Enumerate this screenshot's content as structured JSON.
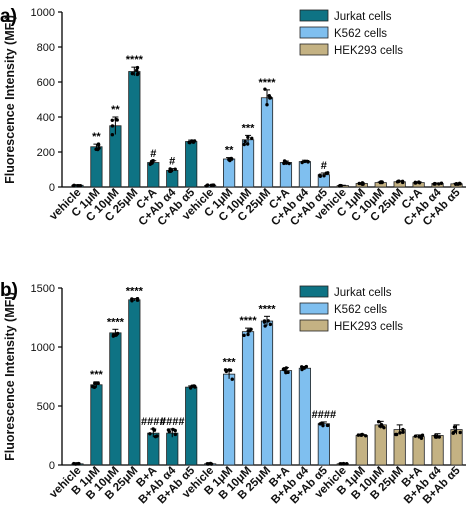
{
  "panels": [
    {
      "label": "a)",
      "ylabel": "Fluorescence Intensity (MFI)",
      "legend": [
        "Jurkat cells",
        "K562 cells",
        "HEK293 cells"
      ]
    },
    {
      "label": "b)",
      "ylabel": "Fluorescence Intensity (MFI)",
      "legend": [
        "Jurkat cells",
        "K562 cells",
        "HEK293 cells"
      ]
    }
  ],
  "colors": {
    "jurkat": "#0e7384",
    "k562": "#7fbfef",
    "hek293": "#c4b283"
  },
  "chart_data": [
    {
      "type": "bar",
      "panel": "a)",
      "ylabel": "Fluorescence Intensity (MFI)",
      "ylim": [
        0,
        1000
      ],
      "yticks": [
        0,
        200,
        400,
        600,
        800,
        1000
      ],
      "categories": [
        "vehicle",
        "C 1μM",
        "C 10μM",
        "C 25μM",
        "C+A",
        "C+Ab α4",
        "C+Ab α5",
        "vehicle",
        "C 1μM",
        "C 10μM",
        "C 25μM",
        "C+A",
        "C+Ab α4",
        "C+Ab α5",
        "vehicle",
        "C 1μM",
        "C 10μM",
        "C 25μM",
        "C+A",
        "C+Ab α4",
        "C+Ab α5"
      ],
      "groups": [
        "Jurkat cells",
        "Jurkat cells",
        "Jurkat cells",
        "Jurkat cells",
        "Jurkat cells",
        "Jurkat cells",
        "Jurkat cells",
        "K562 cells",
        "K562 cells",
        "K562 cells",
        "K562 cells",
        "K562 cells",
        "K562 cells",
        "K562 cells",
        "HEK293 cells",
        "HEK293 cells",
        "HEK293 cells",
        "HEK293 cells",
        "HEK293 cells",
        "HEK293 cells",
        "HEK293 cells"
      ],
      "values": [
        10,
        230,
        350,
        660,
        140,
        95,
        260,
        8,
        160,
        270,
        510,
        140,
        145,
        70,
        8,
        20,
        25,
        30,
        25,
        20,
        18
      ],
      "errors": [
        3,
        15,
        50,
        25,
        10,
        10,
        8,
        3,
        8,
        25,
        45,
        8,
        8,
        10,
        2,
        4,
        4,
        5,
        4,
        3,
        3
      ],
      "significance": [
        "",
        "**",
        "**",
        "****",
        "#",
        "#",
        "",
        "",
        "**",
        "***",
        "****",
        "",
        "",
        "#",
        "",
        "",
        "",
        "",
        "",
        "",
        ""
      ],
      "legend": [
        "Jurkat cells",
        "K562 cells",
        "HEK293 cells"
      ],
      "legend_position": "top-right"
    },
    {
      "type": "bar",
      "panel": "b)",
      "ylabel": "Fluorescence Intensity (MFI)",
      "ylim": [
        0,
        1500
      ],
      "yticks": [
        0,
        500,
        1000,
        1500
      ],
      "categories": [
        "vehicle",
        "B 1μM",
        "B 10μM",
        "B 25μM",
        "B+A",
        "B+Ab α4",
        "B+Ab α5",
        "vehicle",
        "B 1μM",
        "B 10μM",
        "B 25μM",
        "B+A",
        "B+Ab α4",
        "B+Ab α5",
        "vehicle",
        "B 1μM",
        "B 10μM",
        "B 25μM",
        "B+A",
        "B+Ab α4",
        "B+Ab α5"
      ],
      "groups": [
        "Jurkat cells",
        "Jurkat cells",
        "Jurkat cells",
        "Jurkat cells",
        "Jurkat cells",
        "Jurkat cells",
        "Jurkat cells",
        "K562 cells",
        "K562 cells",
        "K562 cells",
        "K562 cells",
        "K562 cells",
        "K562 cells",
        "K562 cells",
        "HEK293 cells",
        "HEK293 cells",
        "HEK293 cells",
        "HEK293 cells",
        "HEK293 cells",
        "HEK293 cells",
        "HEK293 cells"
      ],
      "values": [
        10,
        680,
        1120,
        1400,
        270,
        270,
        660,
        10,
        770,
        1130,
        1220,
        800,
        820,
        350,
        10,
        250,
        340,
        300,
        240,
        250,
        300
      ],
      "errors": [
        3,
        25,
        30,
        10,
        35,
        35,
        10,
        3,
        40,
        30,
        40,
        25,
        15,
        15,
        3,
        10,
        30,
        40,
        15,
        15,
        40
      ],
      "significance": [
        "",
        "***",
        "****",
        "****",
        "####",
        "####",
        "",
        "",
        "***",
        "****",
        "****",
        "",
        "",
        "####",
        "",
        "",
        "",
        "",
        "",
        "",
        ""
      ],
      "legend": [
        "Jurkat cells",
        "K562 cells",
        "HEK293 cells"
      ],
      "legend_position": "top-right"
    }
  ]
}
